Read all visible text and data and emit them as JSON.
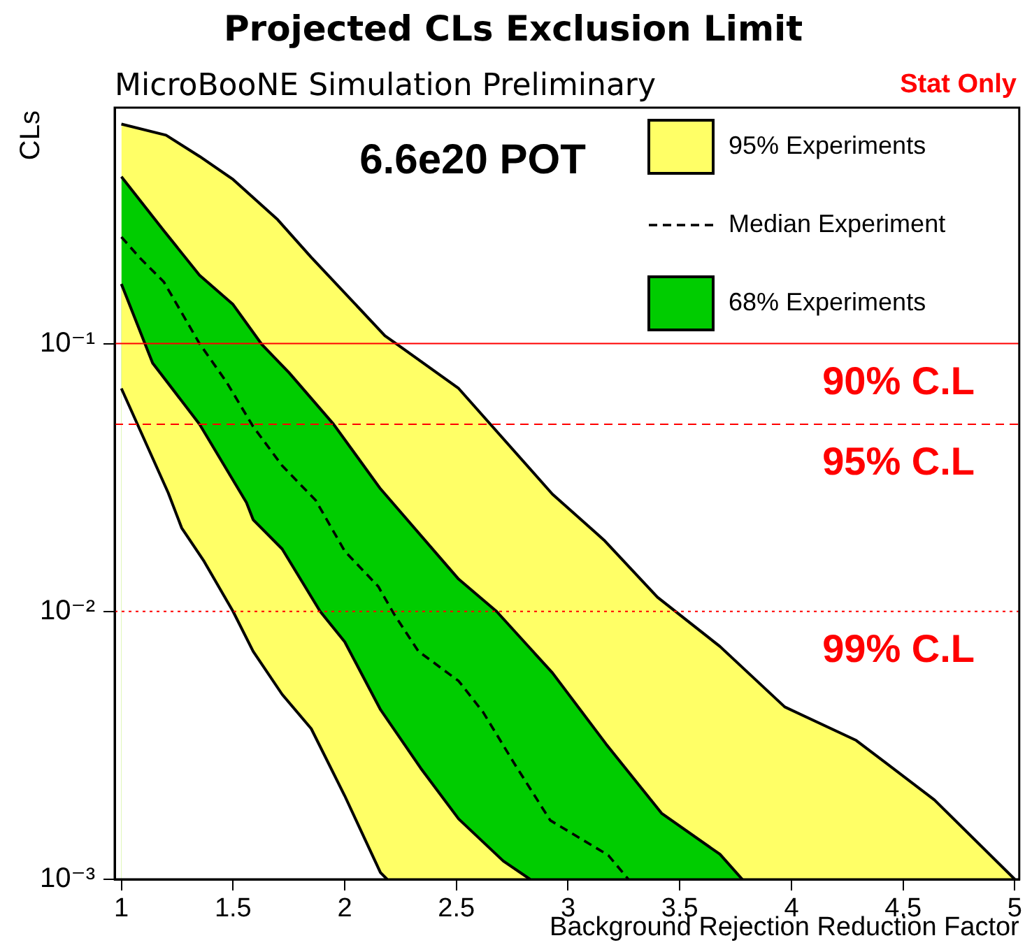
{
  "chart_data": {
    "type": "area",
    "title": "Projected CLs Exclusion Limit",
    "xlabel": "Background Rejection Reduction Factor",
    "ylabel": "CLs",
    "annotations": [
      "MicroBooNE Simulation Preliminary",
      "Stat Only",
      "6.6e20 POT"
    ],
    "log": "y",
    "xlim": [
      0.97,
      5.02
    ],
    "ylim": [
      0.001,
      0.76
    ],
    "xticks": [
      1,
      1.5,
      2,
      2.5,
      3,
      3.5,
      4,
      4.5,
      5
    ],
    "yticks": [
      {
        "value": 0.001,
        "label": "10⁻³"
      },
      {
        "value": 0.01,
        "label": "10⁻²"
      },
      {
        "value": 0.1,
        "label": "10⁻¹"
      }
    ],
    "grid": false,
    "legend": "top right",
    "marker": "none",
    "series": [
      {
        "name": "95% Experiments",
        "type": "area",
        "color": "#ffff66",
        "x": [
          1,
          1.2,
          1.35,
          1.5,
          1.7,
          1.85,
          2.18,
          2.23,
          2.51,
          2.93,
          3.16,
          3.4,
          3.68,
          3.97,
          4.29,
          4.64,
          5.0
        ],
        "values": [
          0.66,
          0.6,
          0.5,
          0.41,
          0.29,
          0.21,
          0.107,
          0.1,
          0.068,
          0.0274,
          0.0185,
          0.0113,
          0.0074,
          0.0044,
          0.0033,
          0.00198,
          0.001
        ]
      },
      {
        "name": "Median Experiment",
        "type": "line",
        "color": "#000000",
        "line_style": "dashed",
        "x": [
          1,
          1.08,
          1.19,
          1.35,
          1.47,
          1.59,
          1.72,
          1.87,
          2.0,
          2.15,
          2.22,
          2.33,
          2.51,
          2.62,
          2.76,
          2.92,
          3.18,
          3.27
        ],
        "values": [
          0.25,
          0.21,
          0.17,
          0.1,
          0.072,
          0.049,
          0.035,
          0.026,
          0.0168,
          0.0124,
          0.0098,
          0.0071,
          0.0055,
          0.0042,
          0.0027,
          0.00166,
          0.00123,
          0.001
        ]
      },
      {
        "name": "68% Experiments",
        "type": "area",
        "color": "#00cc00",
        "x": [
          1,
          1.19,
          1.35,
          1.5,
          1.63,
          1.75,
          1.95,
          2.16,
          2.51,
          2.68,
          2.93,
          3.17,
          3.42,
          3.68,
          3.78
        ],
        "values": [
          0.42,
          0.264,
          0.18,
          0.14,
          0.099,
          0.078,
          0.05,
          0.0287,
          0.0132,
          0.01,
          0.0059,
          0.0032,
          0.00176,
          0.00124,
          0.001
        ]
      },
      {
        "type": "area",
        "color": "#ffff66",
        "x": [
          1,
          1.14,
          1.35,
          1.56,
          1.59,
          1.72,
          1.89,
          2.0,
          2.16,
          2.34,
          2.51,
          2.71,
          2.83
        ],
        "values": [
          0.167,
          0.0845,
          0.05,
          0.0255,
          0.022,
          0.0171,
          0.01,
          0.0077,
          0.0043,
          0.0026,
          0.00168,
          0.00117,
          0.001
        ]
      },
      {
        "type": "area",
        "color": "#ffffff",
        "x": [
          1,
          1.21,
          1.27,
          1.37,
          1.5,
          1.59,
          1.72,
          1.85,
          2.0,
          2.16,
          2.19
        ],
        "values": [
          0.068,
          0.0277,
          0.0205,
          0.0154,
          0.01,
          0.0071,
          0.0049,
          0.00365,
          0.00205,
          0.00106,
          0.001
        ]
      }
    ],
    "ref_lines": [
      {
        "axis": "y",
        "value": 0.1,
        "label": "90% C.L",
        "color": "#ff0000",
        "line_style": "solid"
      },
      {
        "axis": "y",
        "value": 0.05,
        "label": "95% C.L",
        "color": "#ff0000",
        "line_style": "dashed"
      },
      {
        "axis": "y",
        "value": 0.01,
        "label": "99% C.L",
        "color": "#ff0000",
        "line_style": "dotted"
      }
    ]
  }
}
